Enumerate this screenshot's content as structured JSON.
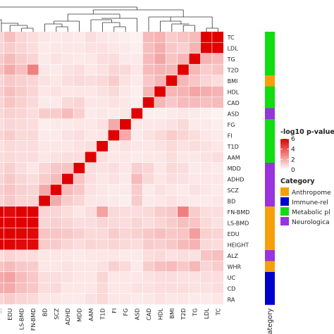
{
  "chart_data": {
    "type": "heatmap",
    "row_labels": [
      "TC",
      "LDL",
      "TG",
      "T2D",
      "BMI",
      "HDL",
      "CAD",
      "ASD",
      "FG",
      "FI",
      "T1D",
      "AAM",
      "MDD",
      "ADHD",
      "SCZ",
      "BD",
      "FN-BMD",
      "LS-BMD",
      "EDU",
      "HEIGHT",
      "ALZ",
      "WHR",
      "UC",
      "CD",
      "RA"
    ],
    "col_labels": [
      "EDU",
      "LS-BMD",
      "FN-BMD",
      "BD",
      "SCZ",
      "ADHD",
      "MDD",
      "AAM",
      "T1D",
      "FI",
      "FG",
      "ASD",
      "CAD",
      "HDL",
      "BMI",
      "T2D",
      "TG",
      "LDL",
      "TC"
    ],
    "col_labels_partial_left": "...",
    "value_matrix_note": "-log10 p-values; visible columns only",
    "values": [
      [
        1.5,
        1.0,
        0.8,
        0.6,
        0.5,
        0.6,
        0.5,
        0.8,
        0.6,
        0.5,
        0.4,
        0.3,
        1.6,
        1.8,
        1.2,
        1.4,
        1.6,
        6.0,
        6.0
      ],
      [
        1.2,
        1.0,
        0.8,
        0.5,
        0.6,
        0.6,
        0.6,
        0.7,
        0.7,
        0.6,
        0.5,
        0.4,
        1.5,
        1.9,
        1.3,
        1.1,
        1.8,
        6.0,
        6.0
      ],
      [
        1.6,
        1.2,
        1.0,
        0.5,
        0.7,
        0.6,
        0.5,
        0.6,
        0.8,
        0.8,
        0.5,
        0.5,
        1.6,
        2.1,
        1.4,
        1.7,
        6.0,
        1.8,
        1.6
      ],
      [
        2.0,
        1.5,
        3.0,
        0.6,
        0.5,
        0.7,
        0.8,
        0.6,
        0.7,
        1.0,
        0.9,
        0.6,
        1.6,
        1.8,
        1.7,
        6.0,
        1.7,
        1.2,
        1.4
      ],
      [
        1.3,
        1.1,
        1.0,
        0.7,
        0.6,
        0.8,
        0.9,
        0.8,
        0.9,
        1.2,
        0.7,
        0.5,
        1.3,
        1.7,
        6.0,
        1.7,
        1.4,
        1.0,
        0.8
      ],
      [
        1.5,
        1.2,
        1.0,
        0.6,
        0.7,
        0.6,
        0.6,
        0.6,
        0.7,
        0.9,
        0.6,
        0.4,
        1.7,
        6.0,
        1.7,
        1.8,
        2.1,
        1.9,
        1.8
      ],
      [
        1.4,
        1.1,
        0.9,
        0.5,
        0.5,
        0.9,
        1.0,
        0.6,
        0.6,
        0.7,
        0.6,
        0.4,
        6.0,
        1.7,
        1.3,
        1.6,
        1.6,
        1.5,
        1.6
      ],
      [
        1.1,
        1.0,
        0.8,
        1.2,
        1.2,
        1.6,
        1.1,
        0.5,
        0.6,
        0.5,
        0.6,
        6.0,
        0.4,
        0.4,
        0.5,
        0.6,
        0.5,
        0.4,
        0.3
      ],
      [
        1.0,
        0.9,
        0.8,
        0.4,
        0.5,
        0.5,
        0.6,
        0.6,
        0.7,
        2.0,
        6.0,
        0.6,
        0.6,
        0.6,
        0.7,
        0.9,
        0.5,
        0.5,
        0.4
      ],
      [
        1.2,
        0.9,
        0.9,
        0.5,
        0.5,
        0.7,
        0.8,
        0.6,
        0.6,
        6.0,
        2.0,
        0.5,
        0.7,
        0.9,
        1.2,
        1.0,
        0.8,
        0.6,
        0.5
      ],
      [
        0.9,
        0.8,
        0.8,
        0.6,
        0.6,
        0.6,
        0.7,
        0.8,
        6.0,
        0.6,
        0.7,
        0.6,
        0.6,
        0.7,
        0.9,
        0.7,
        0.8,
        0.7,
        0.6
      ],
      [
        0.9,
        0.8,
        0.8,
        0.6,
        0.7,
        0.8,
        0.8,
        6.0,
        0.8,
        0.6,
        0.6,
        0.5,
        0.6,
        0.6,
        0.8,
        0.6,
        0.6,
        0.7,
        0.8
      ],
      [
        1.1,
        0.8,
        0.6,
        1.0,
        1.3,
        1.4,
        6.0,
        0.8,
        0.7,
        0.8,
        0.6,
        1.1,
        1.0,
        0.6,
        0.9,
        0.8,
        0.5,
        0.6,
        0.5
      ],
      [
        1.3,
        1.0,
        0.8,
        1.2,
        1.6,
        6.0,
        1.4,
        0.8,
        0.6,
        0.7,
        0.5,
        1.6,
        0.9,
        0.6,
        0.8,
        0.7,
        0.6,
        0.6,
        0.6
      ],
      [
        1.4,
        1.1,
        1.0,
        2.0,
        6.0,
        1.6,
        1.3,
        0.7,
        0.6,
        0.5,
        0.5,
        1.2,
        0.5,
        0.7,
        0.6,
        0.5,
        0.7,
        0.6,
        0.5
      ],
      [
        1.3,
        1.0,
        1.0,
        6.0,
        2.0,
        1.2,
        1.0,
        0.6,
        0.6,
        0.5,
        0.4,
        1.2,
        0.5,
        0.6,
        0.7,
        0.6,
        0.5,
        0.5,
        0.6
      ],
      [
        5.8,
        6.0,
        6.0,
        1.0,
        1.0,
        0.8,
        0.6,
        0.8,
        2.2,
        0.9,
        0.8,
        0.8,
        0.9,
        1.2,
        1.3,
        3.0,
        1.2,
        0.8,
        0.8
      ],
      [
        5.9,
        6.0,
        6.0,
        1.0,
        1.1,
        1.0,
        0.8,
        0.8,
        1.0,
        0.9,
        0.8,
        1.0,
        0.8,
        1.0,
        1.2,
        1.5,
        1.4,
        0.9,
        0.7
      ],
      [
        6.0,
        5.9,
        5.8,
        1.4,
        1.4,
        1.3,
        1.1,
        0.9,
        0.9,
        1.2,
        1.0,
        1.1,
        1.3,
        1.5,
        1.3,
        1.4,
        2.3,
        1.1,
        1.0
      ],
      [
        5.9,
        5.8,
        5.8,
        1.2,
        1.2,
        1.0,
        0.8,
        1.0,
        0.9,
        1.0,
        0.9,
        0.8,
        1.2,
        1.1,
        1.3,
        1.6,
        1.8,
        0.9,
        0.8
      ],
      [
        1.0,
        0.8,
        0.8,
        0.6,
        0.6,
        0.6,
        0.5,
        0.6,
        0.6,
        0.6,
        0.5,
        0.5,
        0.8,
        0.9,
        0.7,
        0.8,
        0.7,
        1.4,
        1.5
      ],
      [
        1.6,
        1.3,
        1.2,
        0.6,
        0.6,
        0.7,
        0.6,
        0.6,
        0.7,
        1.1,
        0.9,
        0.5,
        1.2,
        1.5,
        1.6,
        1.3,
        1.7,
        1.0,
        1.2
      ],
      [
        2.2,
        1.6,
        1.3,
        0.8,
        0.8,
        0.7,
        0.6,
        0.6,
        1.0,
        0.6,
        0.6,
        0.6,
        0.7,
        0.8,
        0.8,
        0.7,
        0.7,
        0.8,
        0.8
      ],
      [
        2.0,
        1.5,
        1.3,
        0.8,
        0.9,
        0.6,
        0.6,
        0.6,
        0.9,
        0.6,
        0.6,
        0.7,
        0.7,
        0.8,
        0.8,
        0.8,
        0.7,
        0.7,
        0.8
      ],
      [
        1.2,
        1.0,
        0.9,
        0.6,
        0.6,
        0.5,
        0.5,
        0.7,
        0.9,
        0.6,
        0.6,
        0.5,
        0.6,
        0.7,
        0.6,
        0.6,
        0.5,
        0.5,
        0.6
      ]
    ],
    "left_partial_values": [
      1.0,
      1.0,
      1.2,
      1.4,
      1.0,
      1.1,
      1.0,
      0.9,
      0.8,
      1.0,
      0.7,
      0.8,
      0.9,
      1.0,
      1.1,
      1.0,
      6.0,
      6.0,
      6.0,
      6.0,
      0.8,
      1.4,
      2.0,
      1.9,
      1.0
    ],
    "row_categories": [
      "Metabolic",
      "Metabolic",
      "Metabolic",
      "Metabolic",
      "Anthropometric",
      "Metabolic",
      "Metabolic",
      "Neurological",
      "Metabolic",
      "Metabolic",
      "Metabolic",
      "Metabolic",
      "Neurological",
      "Neurological",
      "Neurological",
      "Neurological",
      "Anthropometric",
      "Anthropometric",
      "Anthropometric",
      "Anthropometric",
      "Neurological",
      "Anthropometric",
      "Immune",
      "Immune",
      "Immune"
    ],
    "color_scale": {
      "title": "-log10 p-value",
      "ticks": [
        0,
        2,
        4,
        6
      ],
      "range": [
        0,
        6
      ],
      "low_color": "#ffffff",
      "high_color": "#e00000"
    },
    "category_legend": {
      "title": "Category",
      "items": [
        {
          "key": "Anthropometric",
          "label": "Anthropome",
          "color": "#f5a00a"
        },
        {
          "key": "Immune",
          "label": "Immune-rel",
          "color": "#0000cc"
        },
        {
          "key": "Metabolic",
          "label": "Metabolic pl",
          "color": "#11dd11"
        },
        {
          "key": "Neurological",
          "label": "Neurologica",
          "color": "#9933dd"
        }
      ]
    },
    "category_axis_label": "Category"
  }
}
